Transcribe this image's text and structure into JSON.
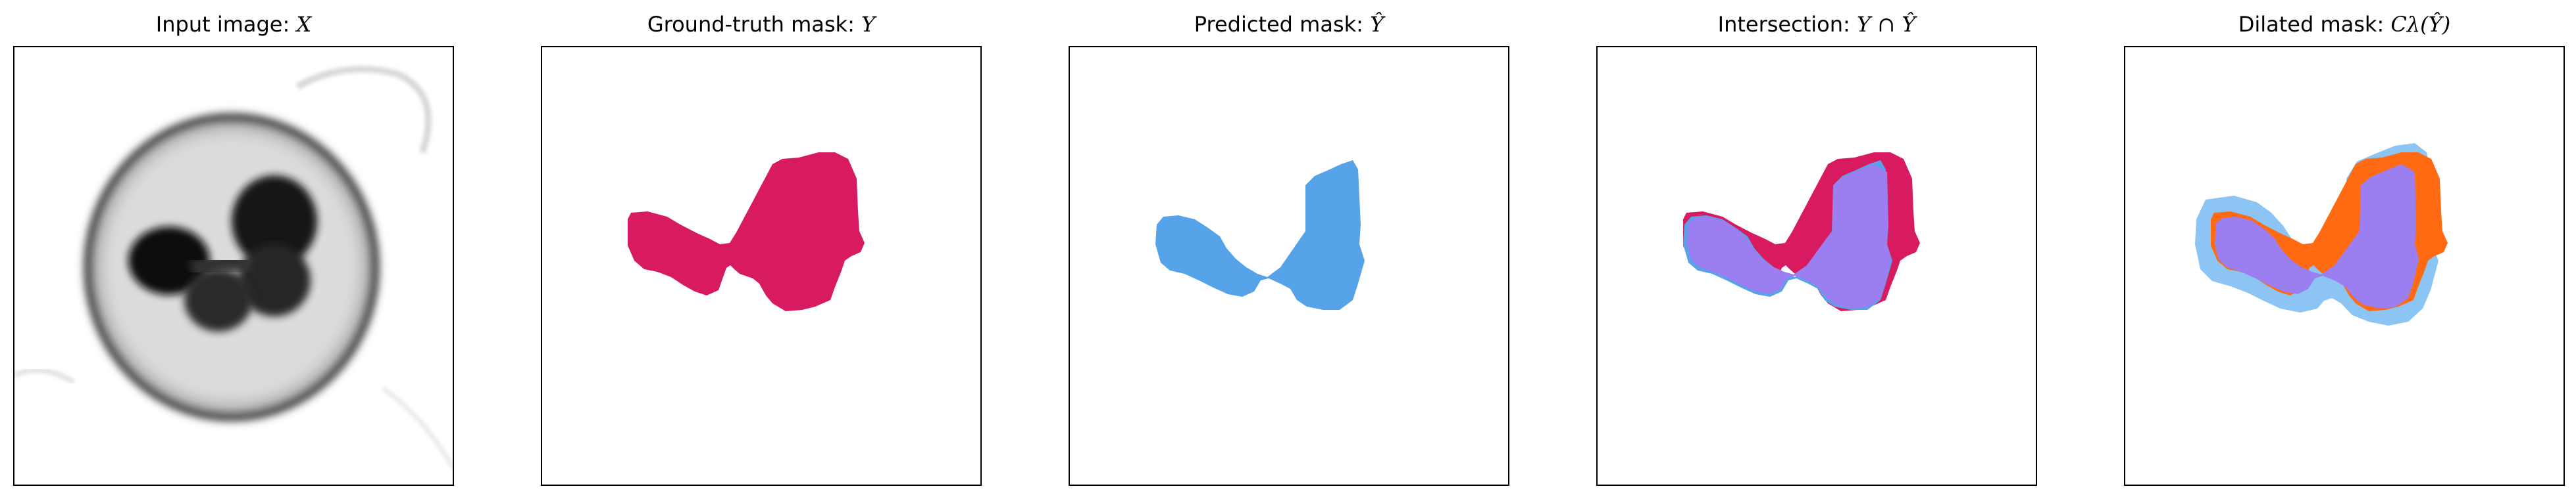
{
  "panels": [
    {
      "title": "Input image: ",
      "symbol": "X"
    },
    {
      "title": "Ground-truth mask: ",
      "symbol": "Y"
    },
    {
      "title": "Predicted mask: ",
      "symbol": "Ŷ"
    },
    {
      "title": "Intersection: ",
      "symbol": "Y ∩ Ŷ"
    },
    {
      "title": "Dilated mask: ",
      "symbol": "Cλ(Ŷ)"
    }
  ],
  "colors": {
    "ground_truth": "#d81b60",
    "predicted": "#56a3e9",
    "intersection": "#9b7ff0",
    "dilation_band": "#8cc4f3",
    "dilation_missed": "#ff6a13",
    "cell_dark": "#1c1c1c"
  }
}
